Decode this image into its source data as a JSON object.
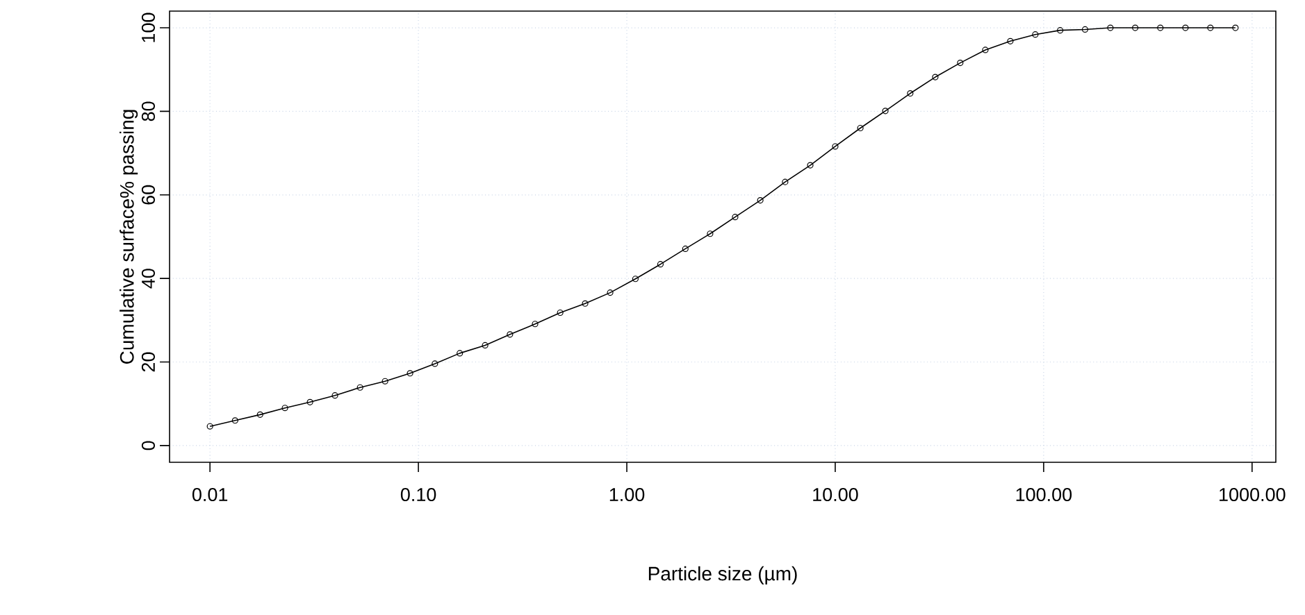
{
  "chart_data": {
    "type": "line",
    "xlabel": "Particle size (µm)",
    "ylabel": "Cumulative surface% passing",
    "log": "x",
    "grid": true,
    "marker": "circle",
    "line_style": "solid",
    "xlim": [
      0.0064,
      1300
    ],
    "ylim": [
      -4,
      104
    ],
    "xticks": [
      {
        "value": 0.01,
        "label": "0.01"
      },
      {
        "value": 0.1,
        "label": "0.10"
      },
      {
        "value": 1,
        "label": "1.00"
      },
      {
        "value": 10,
        "label": "10.00"
      },
      {
        "value": 100,
        "label": "100.00"
      },
      {
        "value": 1000,
        "label": "1000.00"
      }
    ],
    "yticks": [
      0,
      20,
      40,
      60,
      80,
      100
    ],
    "series": [
      {
        "color": "#000000",
        "x": [
          0.01,
          0.0132,
          0.0174,
          0.0229,
          0.0302,
          0.0398,
          0.0525,
          0.0692,
          0.0912,
          0.12,
          0.158,
          0.209,
          0.275,
          0.363,
          0.479,
          0.631,
          0.832,
          1.1,
          1.45,
          1.91,
          2.51,
          3.31,
          4.37,
          5.75,
          7.59,
          10.0,
          13.2,
          17.4,
          22.9,
          30.2,
          39.8,
          52.5,
          69.2,
          91.2,
          120,
          158,
          209,
          275,
          363,
          479,
          631,
          832
        ],
        "values": [
          4.6,
          6,
          7.4,
          9,
          10.4,
          12,
          13.9,
          15.4,
          17.3,
          19.6,
          22.1,
          24,
          26.6,
          29.1,
          31.8,
          34,
          36.6,
          39.9,
          43.4,
          47.1,
          50.7,
          54.7,
          58.7,
          63.1,
          67.1,
          71.6,
          76,
          80.1,
          84.3,
          88.2,
          91.6,
          94.7,
          96.8,
          98.4,
          99.4,
          99.6,
          100,
          100,
          100,
          100,
          100,
          100
        ]
      }
    ]
  }
}
